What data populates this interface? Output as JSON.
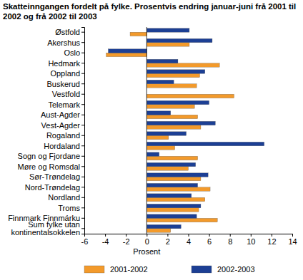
{
  "chart_data": {
    "type": "bar",
    "orientation": "horizontal",
    "title": "Skatteinngangen fordelt på fylke. Prosentvis endring januar-juni frå 2001 til 2002 og frå 2002 til 2003",
    "x_label": "Prosent",
    "categories": [
      "Østfold",
      "Akershus",
      "Oslo",
      "Hedmark",
      "Oppland",
      "Buskerud",
      "Vestfold",
      "Telemark",
      "Aust-Agder",
      "Vest-Agder",
      "Rogaland",
      "Hordaland",
      "Sogn og Fjordane",
      "Møre og Romsdal",
      "Sør-Trøndelag",
      "Nord-Trøndelag",
      "Nordland",
      "Troms",
      "Finnmark Finnmárku",
      "Sum fylke utan kontinentalsokkelen"
    ],
    "series": [
      {
        "name": "2001-2002",
        "color": "#f39a2b",
        "values": [
          -1.6,
          4.1,
          -3.9,
          7.0,
          5.1,
          4.8,
          8.4,
          4.6,
          4.9,
          5.2,
          2.1,
          2.7,
          4.9,
          4.0,
          5.2,
          6.1,
          5.6,
          5.0,
          6.8,
          2.3
        ]
      },
      {
        "name": "2002-2003",
        "color": "#1c3f94",
        "values": [
          4.1,
          6.3,
          -3.7,
          3.0,
          5.6,
          2.6,
          0.0,
          6.0,
          2.3,
          6.6,
          3.8,
          11.3,
          1.2,
          4.7,
          5.9,
          4.9,
          4.3,
          5.2,
          4.8,
          3.3
        ]
      }
    ],
    "xlim": [
      -6,
      14
    ],
    "xticks": [
      -6,
      -4,
      -2,
      0,
      2,
      4,
      6,
      8,
      10,
      12,
      14
    ],
    "grid": false,
    "legend": "bottom"
  }
}
